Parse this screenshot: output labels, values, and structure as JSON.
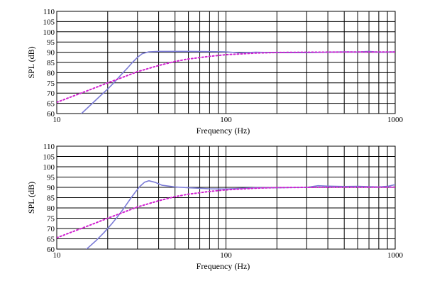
{
  "chart_data": [
    {
      "type": "line",
      "xscale": "log",
      "xlim": [
        10,
        1000
      ],
      "ylim": [
        60,
        110
      ],
      "xlabel": "Frequency (Hz)",
      "ylabel": "SPL (dB)",
      "x_tick_labels": [
        "10",
        "100",
        "1000"
      ],
      "y_tick_labels": [
        "110",
        "105",
        "100",
        "95",
        "90",
        "85",
        "80",
        "75",
        "70",
        "65",
        "60"
      ],
      "grid": true,
      "series": [
        {
          "color": "#7b7bd6",
          "style": "solid",
          "x": [
            14,
            16,
            18,
            20,
            22,
            24,
            26,
            28,
            30,
            32,
            35,
            40,
            50,
            60,
            80,
            100,
            120,
            150,
            200,
            300,
            400,
            500,
            600,
            700,
            800,
            900,
            1000
          ],
          "y": [
            60,
            64.5,
            68.5,
            72,
            75.5,
            79,
            82,
            85,
            87.5,
            89.3,
            90.2,
            90.4,
            90.4,
            90.4,
            90.3,
            90.2,
            89.7,
            90,
            89.8,
            89.8,
            90,
            90.2,
            90.1,
            90.4,
            90,
            90.1,
            90.2
          ]
        },
        {
          "color": "#d020d0",
          "style": "dotted",
          "x": [
            10,
            12,
            15,
            20,
            25,
            30,
            40,
            50,
            60,
            80,
            100,
            150,
            200,
            300,
            500,
            1000
          ],
          "y": [
            65.5,
            68,
            71,
            75,
            78,
            80.5,
            83.5,
            85.5,
            86.7,
            88,
            88.8,
            89.6,
            89.9,
            90,
            90.1,
            90.1
          ]
        }
      ]
    },
    {
      "type": "line",
      "xscale": "log",
      "xlim": [
        10,
        1000
      ],
      "ylim": [
        60,
        110
      ],
      "xlabel": "Frequency (Hz)",
      "ylabel": "SPL (dB)",
      "x_tick_labels": [
        "10",
        "100",
        "1000"
      ],
      "y_tick_labels": [
        "110",
        "105",
        "100",
        "95",
        "90",
        "85",
        "80",
        "75",
        "70",
        "65",
        "60"
      ],
      "grid": true,
      "series": [
        {
          "color": "#7b7bd6",
          "style": "solid",
          "x": [
            15,
            17,
            19,
            21,
            23,
            25,
            27,
            29,
            31,
            33,
            35,
            38,
            42,
            50,
            60,
            80,
            100,
            150,
            200,
            300,
            350,
            400,
            500,
            600,
            800,
            900,
            1000
          ],
          "y": [
            60,
            64,
            68,
            72,
            76,
            80,
            84,
            87.5,
            90.5,
            92.5,
            93.2,
            92.5,
            91,
            90.2,
            89.8,
            89.3,
            89.2,
            89.8,
            89.8,
            90,
            90.8,
            90.6,
            90.4,
            90.5,
            90.2,
            90.5,
            91.3
          ]
        },
        {
          "color": "#d020d0",
          "style": "dotted",
          "x": [
            10,
            12,
            15,
            20,
            25,
            30,
            40,
            50,
            60,
            80,
            100,
            150,
            200,
            300,
            500,
            1000
          ],
          "y": [
            65.5,
            68,
            71,
            75,
            78,
            80.5,
            83.5,
            85.5,
            86.7,
            88,
            88.8,
            89.6,
            89.9,
            90,
            90.1,
            90.1
          ]
        }
      ]
    }
  ]
}
